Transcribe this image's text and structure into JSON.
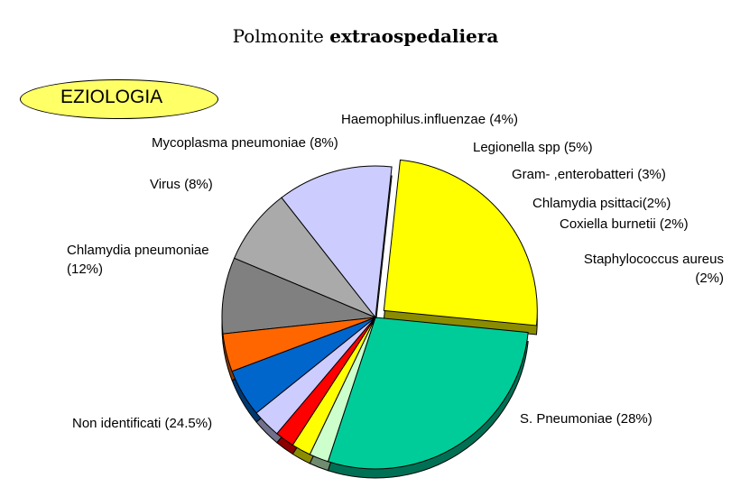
{
  "title": {
    "part1": "Polmonite",
    "part2": "extraospedaliera"
  },
  "badge": {
    "label": "EZIOLOGIA"
  },
  "chart_data": {
    "type": "pie",
    "slices": [
      {
        "label": "S. Pneumoniae (28%)",
        "value": 28,
        "color": "#00cc99"
      },
      {
        "label": "Non identificati (24.5%)",
        "value": 24.5,
        "color": "#ffff00",
        "exploded": true
      },
      {
        "label": "Chlamydia pneumoniae (12%)",
        "value": 12,
        "color": "#ccccff"
      },
      {
        "label": "Virus (8%)",
        "value": 8,
        "color": "#aaaaaa"
      },
      {
        "label": "Mycoplasma pneumoniae (8%)",
        "value": 8,
        "color": "#808080"
      },
      {
        "label": "Haemophilus.influenzae (4%)",
        "value": 4,
        "color": "#ff6600"
      },
      {
        "label": "Legionella spp (5%)",
        "value": 5,
        "color": "#0066cc"
      },
      {
        "label": "Gram- ,enterobatteri (3%)",
        "value": 3,
        "color": "#ccccff"
      },
      {
        "label": "Chlamydia psittaci(2%)",
        "value": 2,
        "color": "#ff0000"
      },
      {
        "label": "Coxiella burnetii (2%)",
        "value": 2,
        "color": "#ffff00"
      },
      {
        "label": "Staphylococcus aureus (2%)",
        "value": 2,
        "color": "#ccffcc"
      }
    ]
  }
}
